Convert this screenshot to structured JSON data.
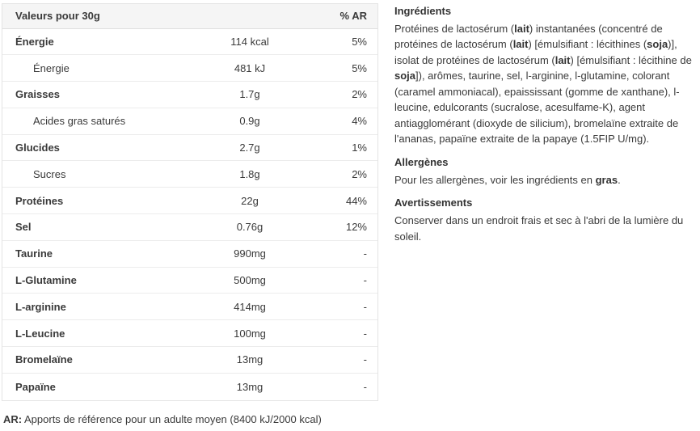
{
  "colors": {
    "page_bg": "#ffffff",
    "text": "#3a3a3a",
    "table_header_bg": "#f5f5f5",
    "table_border": "#e4e4e4",
    "row_divider": "#ececec"
  },
  "table": {
    "header": {
      "label": "Valeurs pour 30g",
      "ar": "% AR"
    },
    "rows": [
      {
        "label": "Énergie",
        "value": "114 kcal",
        "ar": "5%",
        "bold": true,
        "indent": false
      },
      {
        "label": "Énergie",
        "value": "481 kJ",
        "ar": "5%",
        "bold": false,
        "indent": true
      },
      {
        "label": "Graisses",
        "value": "1.7g",
        "ar": "2%",
        "bold": true,
        "indent": false
      },
      {
        "label": "Acides gras saturés",
        "value": "0.9g",
        "ar": "4%",
        "bold": false,
        "indent": true
      },
      {
        "label": "Glucides",
        "value": "2.7g",
        "ar": "1%",
        "bold": true,
        "indent": false
      },
      {
        "label": "Sucres",
        "value": "1.8g",
        "ar": "2%",
        "bold": false,
        "indent": true
      },
      {
        "label": "Protéines",
        "value": "22g",
        "ar": "44%",
        "bold": true,
        "indent": false
      },
      {
        "label": "Sel",
        "value": "0.76g",
        "ar": "12%",
        "bold": true,
        "indent": false
      },
      {
        "label": "Taurine",
        "value": "990mg",
        "ar": "-",
        "bold": true,
        "indent": false
      },
      {
        "label": "L-Glutamine",
        "value": "500mg",
        "ar": "-",
        "bold": true,
        "indent": false
      },
      {
        "label": "L-arginine",
        "value": "414mg",
        "ar": "-",
        "bold": true,
        "indent": false
      },
      {
        "label": "L-Leucine",
        "value": "100mg",
        "ar": "-",
        "bold": true,
        "indent": false
      },
      {
        "label": "Bromelaïne",
        "value": "13mg",
        "ar": "-",
        "bold": true,
        "indent": false
      },
      {
        "label": "Papaïne",
        "value": "13mg",
        "ar": "-",
        "bold": true,
        "indent": false
      }
    ],
    "footnote": {
      "prefix": "AR:",
      "text": " Apports de référence pour un adulte moyen (8400 kJ/2000 kcal)"
    }
  },
  "info": {
    "sections": [
      {
        "id": "ingredients",
        "heading": "Ingrédients",
        "segments": [
          {
            "t": "Protéines de lactosérum (",
            "b": false
          },
          {
            "t": "lait",
            "b": true
          },
          {
            "t": ") instantanées (concentré de protéines de lactosérum (",
            "b": false
          },
          {
            "t": "lait",
            "b": true
          },
          {
            "t": ") [émulsifiant : lécithines (",
            "b": false
          },
          {
            "t": "soja",
            "b": true
          },
          {
            "t": ")], isolat de protéines de lactosérum (",
            "b": false
          },
          {
            "t": "lait",
            "b": true
          },
          {
            "t": ") [émulsifiant : lécithine de ",
            "b": false
          },
          {
            "t": "soja",
            "b": true
          },
          {
            "t": "]), arômes, taurine, sel, l-arginine, l-glutamine, colorant (caramel ammoniacal), epaississant (gomme de xanthane), l-leucine, edulcorants (sucralose, acesulfame-K), agent antiagglomérant (dioxyde de silicium), bromelaïne extraite de l'ananas, papaïne extraite de la papaye (1.5FIP U/mg).",
            "b": false
          }
        ]
      },
      {
        "id": "allergens",
        "heading": "Allergènes",
        "segments": [
          {
            "t": "Pour les allergènes, voir les ingrédients en ",
            "b": false
          },
          {
            "t": "gras",
            "b": true
          },
          {
            "t": ".",
            "b": false
          }
        ]
      },
      {
        "id": "warnings",
        "heading": "Avertissements",
        "segments": [
          {
            "t": "Conserver dans un endroit frais et sec à l'abri de la lumière du soleil.",
            "b": false
          }
        ]
      }
    ]
  }
}
